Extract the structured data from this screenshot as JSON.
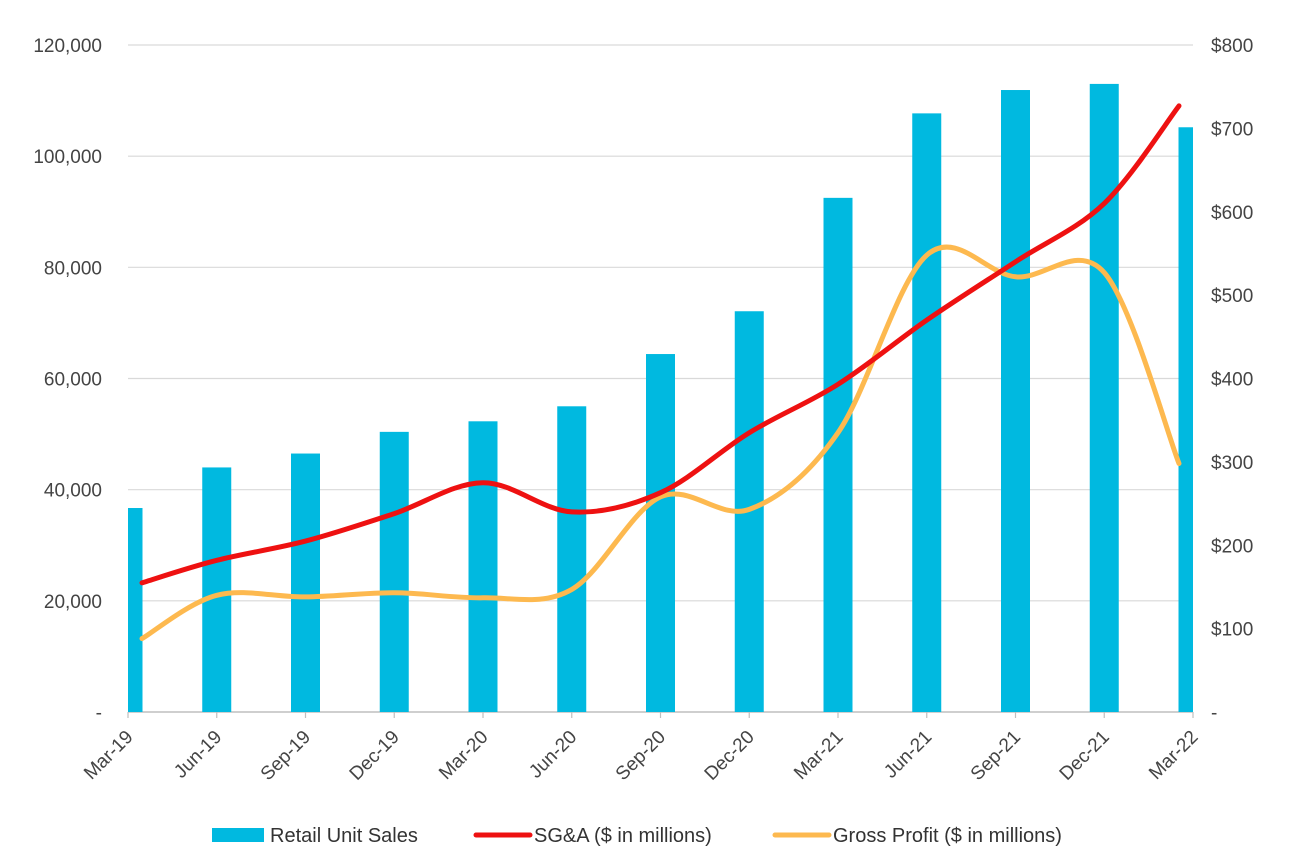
{
  "chart_data": {
    "type": "bar",
    "categories": [
      "Mar-19",
      "Jun-19",
      "Sep-19",
      "Dec-19",
      "Mar-20",
      "Jun-20",
      "Sep-20",
      "Dec-20",
      "Mar-21",
      "Jun-21",
      "Sep-21",
      "Dec-21",
      "Mar-22"
    ],
    "title": "",
    "xlabel": "",
    "ylabel": "",
    "y_left": {
      "range": [
        0,
        120000
      ],
      "ticks": [
        0,
        20000,
        40000,
        60000,
        80000,
        100000,
        120000
      ],
      "tick_labels": [
        "-",
        "20,000",
        "40,000",
        "60,000",
        "80,000",
        "100,000",
        "120,000"
      ]
    },
    "y_right": {
      "range": [
        0,
        800
      ],
      "ticks": [
        0,
        100,
        200,
        300,
        400,
        500,
        600,
        700,
        800
      ],
      "tick_labels": [
        "-",
        "$100",
        "$200",
        "$300",
        "$400",
        "$500",
        "$600",
        "$700",
        "$800"
      ]
    },
    "grid": true,
    "legend_position": "bottom",
    "series": [
      {
        "name": "Retail Unit Sales",
        "type": "bar",
        "axis": "left",
        "color": "#00B9E0",
        "values": [
          36700,
          44000,
          46500,
          50400,
          52300,
          55000,
          64400,
          72100,
          92500,
          107700,
          111900,
          113000,
          105200
        ]
      },
      {
        "name": "SG&A ($ in millions)",
        "type": "line",
        "axis": "right",
        "color": "#EE1111",
        "values": [
          155,
          182,
          205,
          238,
          275,
          240,
          263,
          335,
          393,
          470,
          540,
          610,
          727
        ]
      },
      {
        "name": "Gross Profit ($ in millions)",
        "type": "line",
        "axis": "right",
        "color": "#FDB94F",
        "values": [
          88,
          140,
          138,
          143,
          137,
          147,
          258,
          243,
          335,
          548,
          522,
          527,
          298
        ]
      }
    ]
  }
}
